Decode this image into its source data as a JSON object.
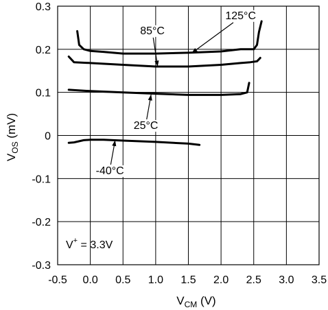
{
  "chart_data": {
    "type": "line",
    "xlim": [
      -0.5,
      3.5
    ],
    "ylim": [
      -0.3,
      0.3
    ],
    "x_ticks": [
      -0.5,
      0.0,
      0.5,
      1.0,
      1.5,
      2.0,
      2.5,
      3.0,
      3.5
    ],
    "x_tick_labels": [
      "-0.5",
      "0.0",
      "0.5",
      "1.0",
      "1.5",
      "2.0",
      "2.5",
      "3.0",
      "3.5"
    ],
    "y_ticks": [
      0.3,
      0.2,
      0.1,
      0,
      -0.1,
      -0.2,
      -0.3
    ],
    "y_tick_labels": [
      "0.3",
      "0.2",
      "0.1",
      "0",
      "-0.1",
      "-0.2",
      "-0.3"
    ],
    "xlabel": {
      "main": "V",
      "sub": "CM",
      "unit": " (V)"
    },
    "ylabel": {
      "main": "V",
      "sub": "OS",
      "unit": " (mV)"
    },
    "grid": true,
    "series": [
      {
        "name": "125°C",
        "x": [
          -0.2,
          -0.17,
          -0.1,
          0.0,
          0.2,
          0.5,
          1.0,
          1.5,
          2.0,
          2.3,
          2.5,
          2.55,
          2.58,
          2.62
        ],
        "y": [
          0.242,
          0.21,
          0.2,
          0.196,
          0.194,
          0.19,
          0.19,
          0.192,
          0.195,
          0.2,
          0.2,
          0.21,
          0.24,
          0.265
        ]
      },
      {
        "name": "85°C",
        "x": [
          -0.33,
          -0.25,
          0.0,
          0.5,
          1.0,
          1.5,
          2.0,
          2.3,
          2.45,
          2.55,
          2.6
        ],
        "y": [
          0.183,
          0.17,
          0.168,
          0.164,
          0.16,
          0.16,
          0.164,
          0.168,
          0.17,
          0.172,
          0.18
        ]
      },
      {
        "name": "25°C",
        "x": [
          -0.33,
          0.0,
          0.5,
          1.0,
          1.5,
          2.0,
          2.3,
          2.4,
          2.43
        ],
        "y": [
          0.106,
          0.103,
          0.1,
          0.097,
          0.094,
          0.094,
          0.096,
          0.1,
          0.122
        ]
      },
      {
        "name": "-40°C",
        "x": [
          -0.33,
          -0.25,
          -0.1,
          0.0,
          0.2,
          0.5,
          1.0,
          1.5,
          1.67
        ],
        "y": [
          -0.017,
          -0.016,
          -0.011,
          -0.01,
          -0.01,
          -0.012,
          -0.015,
          -0.019,
          -0.022
        ]
      }
    ],
    "annotations": [
      {
        "text": "125°C",
        "x": 2.3,
        "y": 0.27,
        "arrow_to": [
          1.55,
          0.191
        ]
      },
      {
        "text": "85°C",
        "x": 0.95,
        "y": 0.235,
        "arrow_to": [
          1.03,
          0.16
        ]
      },
      {
        "text": "25°C",
        "x": 0.85,
        "y": 0.015,
        "arrow_to": [
          0.93,
          0.095
        ]
      },
      {
        "text": "-40°C",
        "x": 0.3,
        "y": -0.09,
        "arrow_to": [
          0.38,
          -0.011
        ]
      },
      {
        "text": "V+ = 3.3V",
        "x": -0.45,
        "y": -0.25
      }
    ]
  },
  "condition_label": {
    "main": "V",
    "sup": "+",
    "rest": " = 3.3V"
  },
  "colors": {
    "line": "#000000",
    "grid": "#000000",
    "background": "#ffffff"
  }
}
